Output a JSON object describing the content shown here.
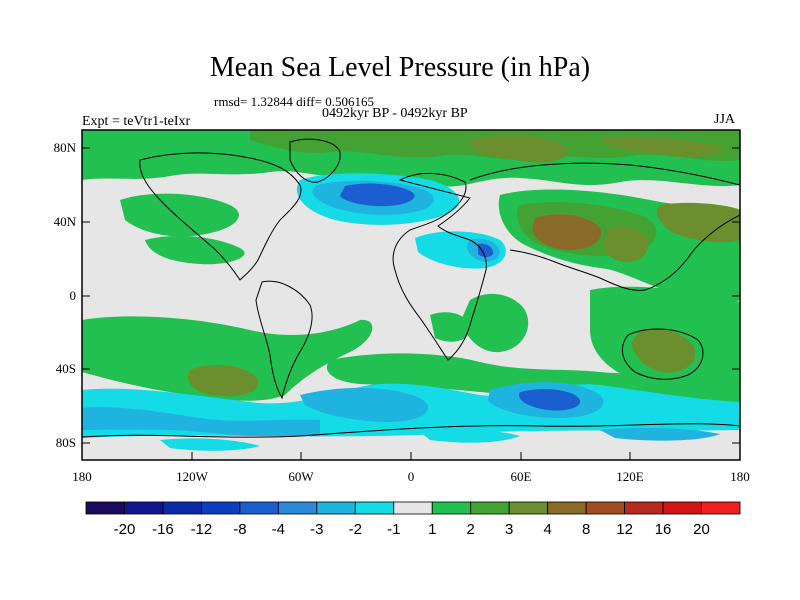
{
  "title": "Mean Sea Level Pressure (in hPa)",
  "stats_text": "rmsd= 1.32844  diff= 0.506165",
  "period_text": "0492kyr BP - 0492kyr BP",
  "experiment_text": "Expt = teVtr1-teIxr",
  "season_text": "JJA",
  "x_axis": {
    "tick_labels": [
      "180",
      "120W",
      "60W",
      "0",
      "60E",
      "120E",
      "180"
    ]
  },
  "y_axis": {
    "tick_labels": [
      "80N",
      "40N",
      "0",
      "40S",
      "80S"
    ]
  },
  "colorbar": {
    "labels": [
      "-20",
      "-16",
      "-12",
      "-8",
      "-4",
      "-3",
      "-2",
      "-1",
      "1",
      "2",
      "3",
      "4",
      "8",
      "12",
      "16",
      "20"
    ],
    "colors": [
      "#1a0b5e",
      "#11178c",
      "#0a2aa8",
      "#0b3fbf",
      "#1b5ecf",
      "#2d89d6",
      "#1fb3df",
      "#14dbe6",
      "#e6e6e6",
      "#22c050",
      "#44a233",
      "#6b8f2e",
      "#8a6a28",
      "#a24c24",
      "#b52a1e",
      "#d01515",
      "#ee2020"
    ]
  },
  "colors": {
    "background_land_zero": "#e6e6e6",
    "green": "#22c050",
    "dark_green": "#44a233",
    "olive": "#6b8f2e",
    "brown": "#8a6a28",
    "cyan": "#14dbe6",
    "light_blue": "#1fb3df",
    "blue": "#1b5ecf"
  }
}
